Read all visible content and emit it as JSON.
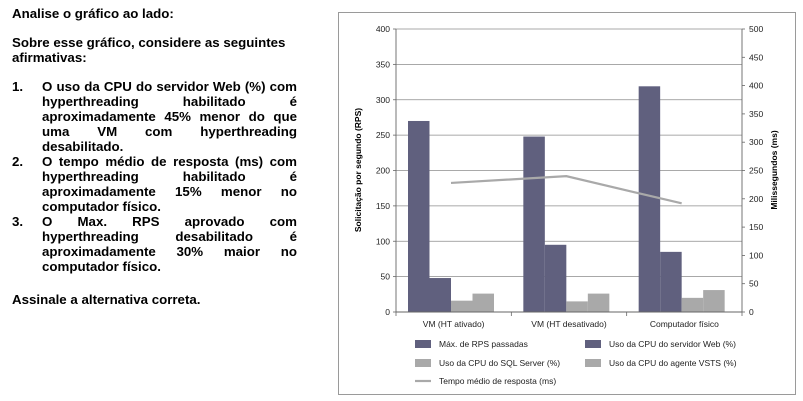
{
  "question": {
    "intro": "Analise o gráfico ao lado:",
    "lead": "Sobre esse gráfico, considere as seguintes afirmativas:",
    "items": [
      {
        "num": "1.",
        "text": "O uso da CPU do servidor Web (%) com hyperthreading habilitado é aproximadamente 45% menor do que uma VM com hyperthreading desabilitado."
      },
      {
        "num": "2.",
        "text": "O tempo médio de resposta (ms) com hyperthreading habilitado é aproximadamente 15% menor no computador físico."
      },
      {
        "num": "3.",
        "text": "O Max. RPS aprovado com hyperthreading desabilitado é aproximadamente 30% maior no computador físico."
      }
    ],
    "closing": "Assinale a alternativa correta."
  },
  "chart_data": {
    "type": "bar",
    "categories": [
      "VM (HT ativado)",
      "VM (HT desativado)",
      "Computador físico"
    ],
    "series": [
      {
        "name": "Máx. de RPS passadas",
        "axis": "left",
        "color": "#60607e",
        "values": [
          270,
          248,
          319
        ]
      },
      {
        "name": "Uso da CPU do servidor Web (%)",
        "axis": "left",
        "color": "#60607e",
        "values": [
          48,
          95,
          85
        ]
      },
      {
        "name": "Uso da CPU do SQL Server (%)",
        "axis": "left",
        "color": "#a9a9a9",
        "values": [
          16,
          15,
          20
        ]
      },
      {
        "name": "Uso da CPU do agente VSTS (%)",
        "axis": "left",
        "color": "#a9a9a9",
        "values": [
          26,
          26,
          31
        ]
      },
      {
        "name": "Tempo médio de resposta (ms)",
        "axis": "right",
        "type": "line",
        "color": "#a9a9a9",
        "values": [
          228,
          240,
          192
        ]
      }
    ],
    "ylabel": "Solicitação por segundo (RPS)",
    "y2label": "Milissegundos (ms)",
    "ylim": [
      0,
      400
    ],
    "yticks": [
      0,
      50,
      100,
      150,
      200,
      250,
      300,
      350,
      400
    ],
    "y2lim": [
      0,
      500
    ],
    "y2ticks": [
      0,
      50,
      100,
      150,
      200,
      250,
      300,
      350,
      400,
      450,
      500
    ],
    "grid": true,
    "legend": "bottom"
  }
}
